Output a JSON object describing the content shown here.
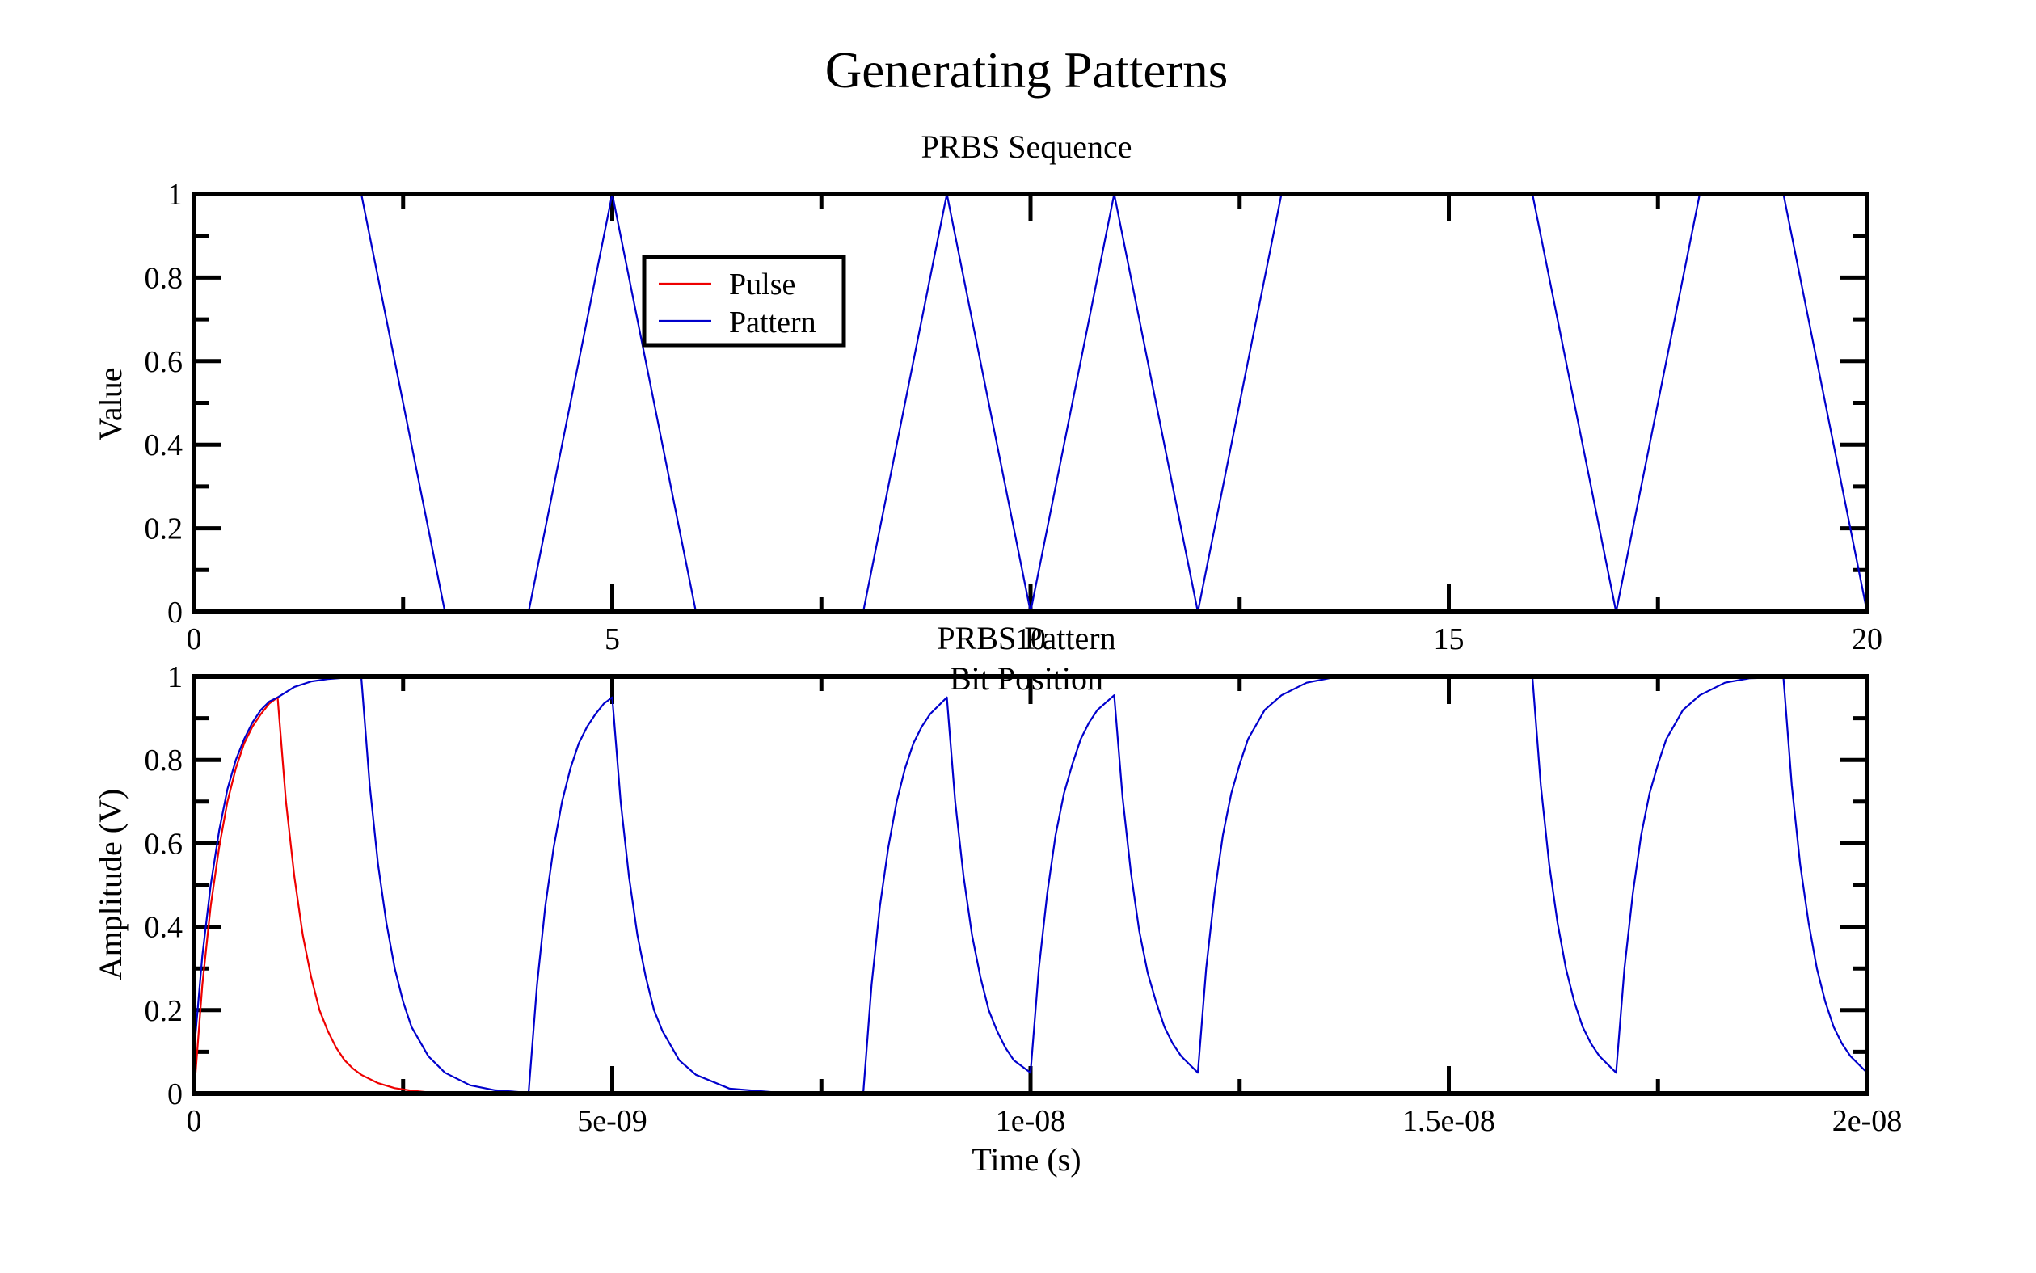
{
  "title": "Generating Patterns",
  "colors": {
    "pulse": "#ee0000",
    "pattern": "#0000cc"
  },
  "chart_data": [
    {
      "type": "line",
      "title": "PRBS Sequence",
      "xlabel": "Bit Position",
      "ylabel": "Value",
      "xlim": [
        0,
        20
      ],
      "ylim": [
        0,
        1
      ],
      "x_ticks": [
        "0",
        "5",
        "10",
        "15",
        "20"
      ],
      "y_ticks": [
        "0",
        "0.2",
        "0.4",
        "0.6",
        "0.8",
        "1"
      ],
      "legend": {
        "placement": "top-left",
        "entries": [
          "Pulse",
          "Pattern"
        ]
      },
      "series": [
        {
          "name": "Pattern",
          "x": [
            0,
            1,
            2,
            3,
            4,
            5,
            6,
            7,
            8,
            9,
            10,
            11,
            12,
            13,
            14,
            15,
            16,
            17,
            18,
            19,
            20
          ],
          "y": [
            1,
            1,
            1,
            0,
            0,
            1,
            0,
            0,
            0,
            1,
            0,
            1,
            0,
            1,
            1,
            1,
            1,
            0,
            1,
            1,
            0
          ]
        }
      ]
    },
    {
      "type": "line",
      "title": "PRBS Pattern",
      "xlabel": "Time (s)",
      "ylabel": "Amplitude (V)",
      "xlim": [
        0,
        2e-08
      ],
      "ylim": [
        0,
        1
      ],
      "x_ticks": [
        "0",
        "5e-09",
        "1e-08",
        "1.5e-08",
        "2e-08"
      ],
      "y_ticks": [
        "0",
        "0.2",
        "0.4",
        "0.6",
        "0.8",
        "1"
      ],
      "series": [
        {
          "name": "Pulse",
          "x": [
            0,
            1e-10,
            2e-10,
            3e-10,
            4e-10,
            5e-10,
            6e-10,
            7e-10,
            8e-10,
            9e-10,
            1e-09,
            1.1e-09,
            1.2e-09,
            1.3e-09,
            1.4e-09,
            1.5e-09,
            1.6e-09,
            1.7e-09,
            1.8e-09,
            1.9e-09,
            2e-09,
            2.2e-09,
            2.4e-09,
            2.6e-09,
            2.8e-09
          ],
          "y": [
            0,
            0.26,
            0.45,
            0.59,
            0.7,
            0.78,
            0.84,
            0.88,
            0.91,
            0.935,
            0.95,
            0.7,
            0.52,
            0.38,
            0.28,
            0.2,
            0.15,
            0.11,
            0.08,
            0.06,
            0.045,
            0.025,
            0.013,
            0.007,
            0.003
          ]
        },
        {
          "name": "Pattern",
          "x": [
            0,
            1e-10,
            2e-10,
            3e-10,
            4e-10,
            5e-10,
            6e-10,
            7e-10,
            8e-10,
            9e-10,
            1e-09,
            1.2e-09,
            1.4e-09,
            1.6e-09,
            1.8e-09,
            2e-09,
            2.1e-09,
            2.2e-09,
            2.3e-09,
            2.4e-09,
            2.5e-09,
            2.6e-09,
            2.8e-09,
            3e-09,
            3.3e-09,
            3.6e-09,
            4e-09,
            4.1e-09,
            4.2e-09,
            4.3e-09,
            4.4e-09,
            4.5e-09,
            4.6e-09,
            4.7e-09,
            4.8e-09,
            4.9e-09,
            5e-09,
            5.1e-09,
            5.2e-09,
            5.3e-09,
            5.4e-09,
            5.5e-09,
            5.6e-09,
            5.8e-09,
            6e-09,
            6.4e-09,
            7e-09,
            8e-09,
            8.1e-09,
            8.2e-09,
            8.3e-09,
            8.4e-09,
            8.5e-09,
            8.6e-09,
            8.7e-09,
            8.8e-09,
            9e-09,
            9.1e-09,
            9.2e-09,
            9.3e-09,
            9.4e-09,
            9.5e-09,
            9.6e-09,
            9.7e-09,
            9.8e-09,
            1e-08,
            1.01e-08,
            1.02e-08,
            1.03e-08,
            1.04e-08,
            1.05e-08,
            1.06e-08,
            1.07e-08,
            1.08e-08,
            1.1e-08,
            1.11e-08,
            1.12e-08,
            1.13e-08,
            1.14e-08,
            1.15e-08,
            1.16e-08,
            1.17e-08,
            1.18e-08,
            1.2e-08,
            1.21e-08,
            1.22e-08,
            1.23e-08,
            1.24e-08,
            1.25e-08,
            1.26e-08,
            1.28e-08,
            1.3e-08,
            1.33e-08,
            1.36e-08,
            1.6e-08,
            1.61e-08,
            1.62e-08,
            1.63e-08,
            1.64e-08,
            1.65e-08,
            1.66e-08,
            1.67e-08,
            1.68e-08,
            1.7e-08,
            1.71e-08,
            1.72e-08,
            1.73e-08,
            1.74e-08,
            1.75e-08,
            1.76e-08,
            1.78e-08,
            1.8e-08,
            1.83e-08,
            1.86e-08,
            1.9e-08,
            1.91e-08,
            1.92e-08,
            1.93e-08,
            1.94e-08,
            1.95e-08,
            1.96e-08,
            1.97e-08,
            1.98e-08,
            2e-08
          ],
          "y": [
            0.1,
            0.33,
            0.5,
            0.63,
            0.73,
            0.8,
            0.85,
            0.89,
            0.92,
            0.94,
            0.95,
            0.975,
            0.988,
            0.994,
            0.997,
            0.998,
            0.74,
            0.55,
            0.41,
            0.3,
            0.22,
            0.16,
            0.09,
            0.05,
            0.02,
            0.008,
            0.002,
            0.26,
            0.45,
            0.59,
            0.7,
            0.78,
            0.84,
            0.88,
            0.91,
            0.935,
            0.95,
            0.7,
            0.52,
            0.38,
            0.28,
            0.2,
            0.15,
            0.08,
            0.045,
            0.012,
            0.002,
            0,
            0.26,
            0.45,
            0.59,
            0.7,
            0.78,
            0.84,
            0.88,
            0.91,
            0.95,
            0.7,
            0.52,
            0.38,
            0.28,
            0.2,
            0.15,
            0.11,
            0.08,
            0.05,
            0.3,
            0.48,
            0.62,
            0.72,
            0.79,
            0.85,
            0.89,
            0.92,
            0.955,
            0.71,
            0.53,
            0.39,
            0.29,
            0.22,
            0.16,
            0.12,
            0.09,
            0.05,
            0.3,
            0.48,
            0.62,
            0.72,
            0.79,
            0.85,
            0.92,
            0.955,
            0.985,
            0.997,
            0.998,
            0.74,
            0.55,
            0.41,
            0.3,
            0.22,
            0.16,
            0.12,
            0.09,
            0.05,
            0.3,
            0.48,
            0.62,
            0.72,
            0.79,
            0.85,
            0.92,
            0.955,
            0.985,
            0.996,
            0.998,
            0.74,
            0.55,
            0.41,
            0.3,
            0.22,
            0.16,
            0.12,
            0.09,
            0.05
          ]
        }
      ]
    }
  ]
}
